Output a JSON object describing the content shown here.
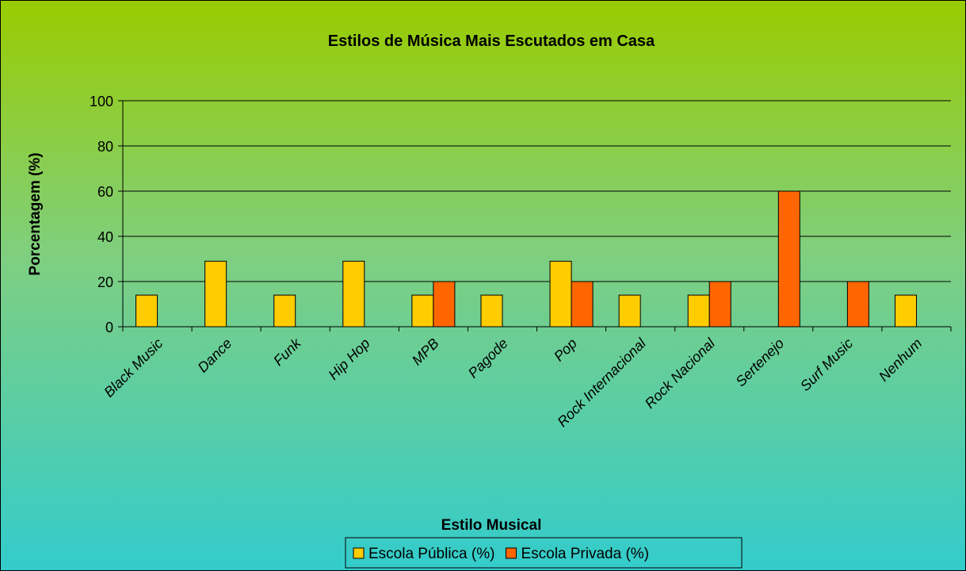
{
  "chart_data": {
    "type": "bar",
    "title": "Estilos de Música Mais Escutados em Casa",
    "x_label": "Estilo Musical",
    "y_label": "Porcentagem (%)",
    "categories": [
      "Black Music",
      "Dance",
      "Funk",
      "Hip Hop",
      "MPB",
      "Pagode",
      "Pop",
      "Rock Internacional",
      "Rock Nacional",
      "Sertenejo",
      "Surf Music",
      "Nenhum"
    ],
    "series": [
      {
        "name": "Escola Pública (%)",
        "color": "#ffcc00",
        "values": [
          14,
          29,
          14,
          29,
          14,
          14,
          29,
          14,
          14,
          0,
          0,
          14
        ]
      },
      {
        "name": "Escola Privada (%)",
        "color": "#ff6600",
        "values": [
          0,
          0,
          0,
          0,
          20,
          0,
          20,
          0,
          20,
          60,
          20,
          0
        ]
      }
    ],
    "ylim": [
      0,
      100
    ],
    "yticks": [
      0,
      20,
      40,
      60,
      80,
      100
    ],
    "grid": true,
    "legend": "bottom"
  }
}
